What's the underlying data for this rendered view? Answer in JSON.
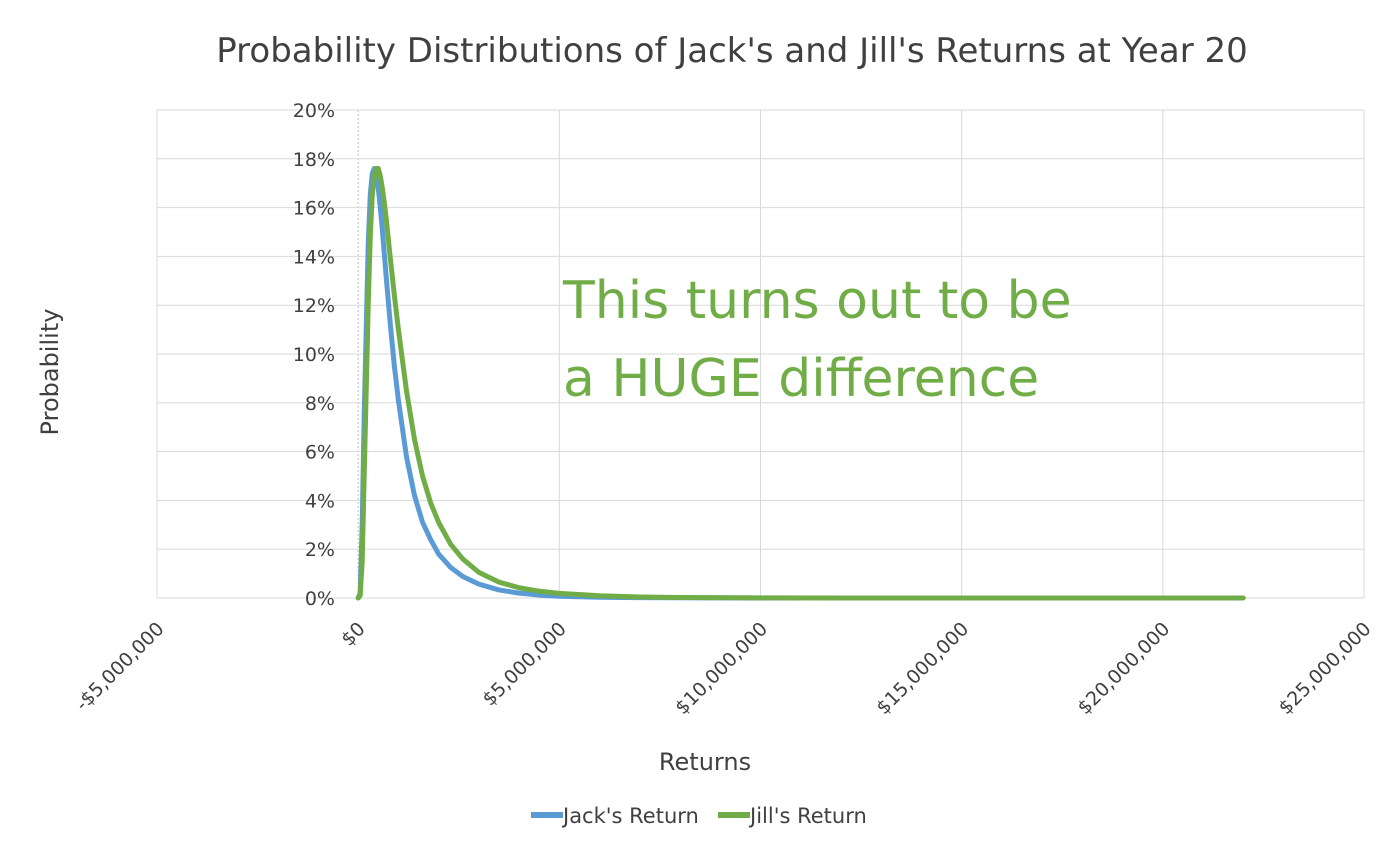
{
  "chart_data": {
    "type": "line",
    "title": "Probability Distributions of Jack's and Jill's Returns at Year 20",
    "xlabel": "Returns",
    "ylabel": "Probability",
    "xlim": [
      -5000000,
      25000000
    ],
    "ylim": [
      0,
      0.2
    ],
    "x_ticks": [
      -5000000,
      0,
      5000000,
      10000000,
      15000000,
      20000000,
      25000000
    ],
    "x_tick_labels": [
      "-$5,000,000",
      "$0",
      "$5,000,000",
      "$10,000,000",
      "$15,000,000",
      "$20,000,000",
      "$25,000,000"
    ],
    "y_ticks": [
      0,
      0.02,
      0.04,
      0.06,
      0.08,
      0.1,
      0.12,
      0.14,
      0.16,
      0.18,
      0.2
    ],
    "y_tick_labels": [
      "0%",
      "2%",
      "4%",
      "6%",
      "8%",
      "10%",
      "12%",
      "14%",
      "16%",
      "18%",
      "20%"
    ],
    "grid": true,
    "legend_position": "bottom",
    "series": [
      {
        "name": "Jack's Return",
        "color": "#5B9BD5",
        "x": [
          0,
          50000,
          100000,
          150000,
          200000,
          250000,
          300000,
          350000,
          400000,
          450000,
          500000,
          550000,
          600000,
          700000,
          800000,
          900000,
          1000000,
          1200000,
          1400000,
          1600000,
          1800000,
          2000000,
          2300000,
          2600000,
          3000000,
          3500000,
          4000000,
          4500000,
          5000000,
          6000000,
          7000000,
          8000000,
          9000000,
          10000000,
          11000000
        ],
        "values": [
          0,
          0.002,
          0.03,
          0.075,
          0.11,
          0.145,
          0.165,
          0.174,
          0.176,
          0.174,
          0.168,
          0.16,
          0.151,
          0.131,
          0.112,
          0.095,
          0.081,
          0.058,
          0.042,
          0.031,
          0.024,
          0.018,
          0.0125,
          0.0088,
          0.0057,
          0.0033,
          0.002,
          0.0012,
          0.0007,
          0.0003,
          0.00015,
          8e-05,
          4e-05,
          2e-05,
          0
        ]
      },
      {
        "name": "Jill's Return",
        "color": "#70AD47",
        "x": [
          0,
          50000,
          100000,
          150000,
          200000,
          250000,
          300000,
          350000,
          400000,
          450000,
          500000,
          550000,
          600000,
          650000,
          700000,
          800000,
          900000,
          1000000,
          1200000,
          1400000,
          1600000,
          1800000,
          2000000,
          2300000,
          2600000,
          3000000,
          3500000,
          4000000,
          4500000,
          5000000,
          6000000,
          7000000,
          8000000,
          10000000,
          12000000,
          15000000,
          18000000,
          22000000
        ],
        "values": [
          0,
          0.001,
          0.015,
          0.05,
          0.085,
          0.12,
          0.148,
          0.165,
          0.173,
          0.176,
          0.176,
          0.173,
          0.168,
          0.162,
          0.155,
          0.139,
          0.124,
          0.11,
          0.085,
          0.065,
          0.05,
          0.039,
          0.031,
          0.022,
          0.016,
          0.0105,
          0.0065,
          0.0042,
          0.0028,
          0.0019,
          0.0009,
          0.0004,
          0.0002,
          6e-05,
          2e-05,
          5e-06,
          1e-06,
          0
        ]
      }
    ],
    "annotation": {
      "lines": [
        "This turns out to be",
        "a HUGE difference"
      ],
      "color": "#70AD47"
    }
  },
  "colors": {
    "grid": "#D9D9D9",
    "text": "#404040"
  }
}
